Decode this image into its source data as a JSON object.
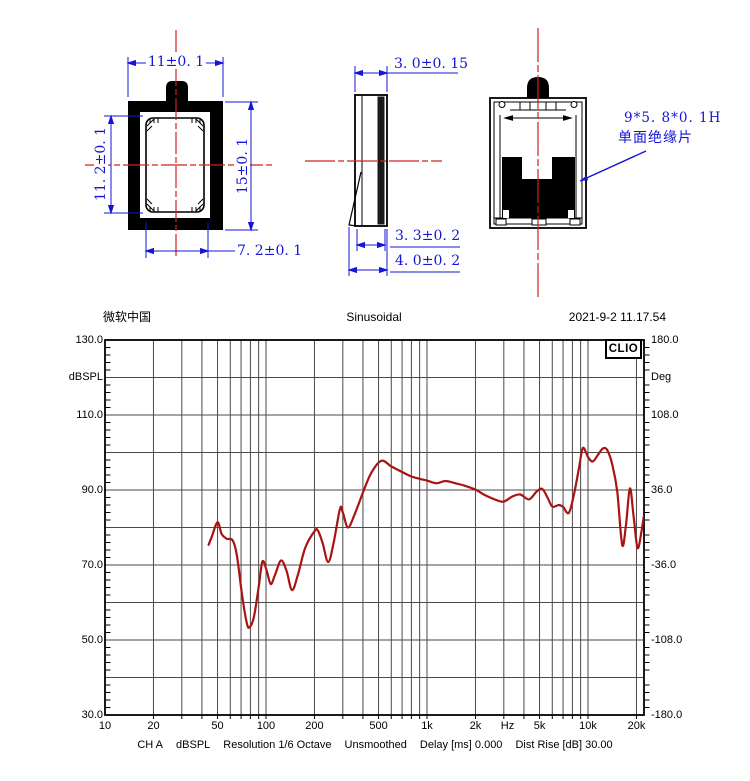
{
  "drawing": {
    "front_view": {
      "dim_top": "11±0. 1",
      "dim_left": "11. 2±0. 1",
      "dim_right": "15±0. 1",
      "dim_bottom": "7. 2±0. 1"
    },
    "side_view": {
      "dim_thickness": "3. 0±0. 15",
      "dim_bottom_inner": "3. 3±0. 2",
      "dim_bottom_outer": "4. 0±0. 2"
    },
    "back_view": {
      "insulator_spec": "9*5. 8*0. 1H",
      "insulator_label": "单面绝缘片"
    },
    "colors": {
      "dimension": "#1515d6",
      "centerline": "#d02020",
      "part": "#000000"
    }
  },
  "chart": {
    "header": {
      "left": "微软中国",
      "center": "Sinusoidal",
      "right": "2021-9-2 11.17.54"
    },
    "brand": "CLIO",
    "left_axis": {
      "unit": "dBSPL",
      "labels": [
        "130.0",
        "110.0",
        "90.0",
        "70.0",
        "50.0",
        "30.0"
      ]
    },
    "right_axis": {
      "unit": "Deg",
      "labels": [
        "180.0",
        "108.0",
        "36.0",
        "-36.0",
        "-108.0",
        "-180.0"
      ]
    },
    "x_axis": {
      "labels": [
        "10",
        "20",
        "50",
        "100",
        "200",
        "500",
        "1k",
        "2k",
        "Hz",
        "5k",
        "10k",
        "20k"
      ]
    },
    "footer": {
      "segments": [
        "CH A",
        "dBSPL",
        "Resolution 1/6 Octave",
        "Unsmoothed",
        "Delay [ms] 0.000",
        "Dist Rise [dB] 30.00"
      ]
    },
    "colors": {
      "curve": "#a81414",
      "grid": "#4a4a4a",
      "axis": "#000000"
    }
  },
  "chart_data": {
    "type": "line",
    "title": "Sinusoidal",
    "x_scale": "log",
    "xlabel": "Hz",
    "xlim": [
      10,
      22300
    ],
    "x_ticks": [
      10,
      20,
      50,
      100,
      200,
      500,
      1000,
      2000,
      5000,
      10000,
      20000
    ],
    "ylabel_left": "dBSPL",
    "ylim_left": [
      30,
      130
    ],
    "y_ticks_left": [
      130,
      110,
      90,
      70,
      50,
      30
    ],
    "ylabel_right": "Deg",
    "ylim_right": [
      -180,
      180
    ],
    "y_ticks_right": [
      180,
      108,
      36,
      -36,
      -108,
      -180
    ],
    "grid": true,
    "legend_position": "none",
    "series": [
      {
        "name": "CH A dBSPL",
        "unit": "dBSPL",
        "color": "#a81414",
        "points": [
          [
            44,
            75.4
          ],
          [
            46,
            77.5
          ],
          [
            50,
            81.4
          ],
          [
            53,
            78.3
          ],
          [
            57,
            77.0
          ],
          [
            62,
            76.6
          ],
          [
            66,
            72.5
          ],
          [
            71,
            62.0
          ],
          [
            76,
            54.5
          ],
          [
            79,
            53.4
          ],
          [
            84,
            56.0
          ],
          [
            90,
            64.0
          ],
          [
            95,
            70.9
          ],
          [
            101,
            68.5
          ],
          [
            107,
            64.9
          ],
          [
            114,
            67.5
          ],
          [
            124,
            71.2
          ],
          [
            134,
            68.5
          ],
          [
            145,
            63.3
          ],
          [
            158,
            67.5
          ],
          [
            175,
            74.5
          ],
          [
            200,
            79.0
          ],
          [
            210,
            79.2
          ],
          [
            225,
            75.8
          ],
          [
            243,
            70.8
          ],
          [
            262,
            75.5
          ],
          [
            288,
            85.0
          ],
          [
            300,
            84.0
          ],
          [
            323,
            80.0
          ],
          [
            355,
            83.5
          ],
          [
            400,
            89.3
          ],
          [
            450,
            94.5
          ],
          [
            520,
            97.8
          ],
          [
            600,
            96.3
          ],
          [
            700,
            94.8
          ],
          [
            800,
            93.6
          ],
          [
            900,
            93.0
          ],
          [
            1000,
            92.5
          ],
          [
            1150,
            91.8
          ],
          [
            1300,
            92.4
          ],
          [
            1500,
            91.8
          ],
          [
            1700,
            91.2
          ],
          [
            2000,
            90.1
          ],
          [
            2300,
            88.6
          ],
          [
            2700,
            87.3
          ],
          [
            3000,
            86.9
          ],
          [
            3400,
            88.3
          ],
          [
            3800,
            88.8
          ],
          [
            4300,
            87.5
          ],
          [
            4800,
            89.6
          ],
          [
            5200,
            90.3
          ],
          [
            5600,
            88.0
          ],
          [
            6000,
            85.6
          ],
          [
            6600,
            86.0
          ],
          [
            7000,
            85.5
          ],
          [
            7600,
            83.9
          ],
          [
            8200,
            89.0
          ],
          [
            8800,
            96.0
          ],
          [
            9300,
            101.2
          ],
          [
            10000,
            98.8
          ],
          [
            10700,
            97.6
          ],
          [
            11500,
            99.3
          ],
          [
            12400,
            101.1
          ],
          [
            13200,
            100.6
          ],
          [
            14200,
            96.5
          ],
          [
            15200,
            89.5
          ],
          [
            16300,
            75.4
          ],
          [
            17200,
            80.5
          ],
          [
            18200,
            90.4
          ],
          [
            19200,
            83.0
          ],
          [
            20300,
            74.6
          ],
          [
            21400,
            78.5
          ],
          [
            22200,
            83.0
          ]
        ]
      }
    ]
  }
}
